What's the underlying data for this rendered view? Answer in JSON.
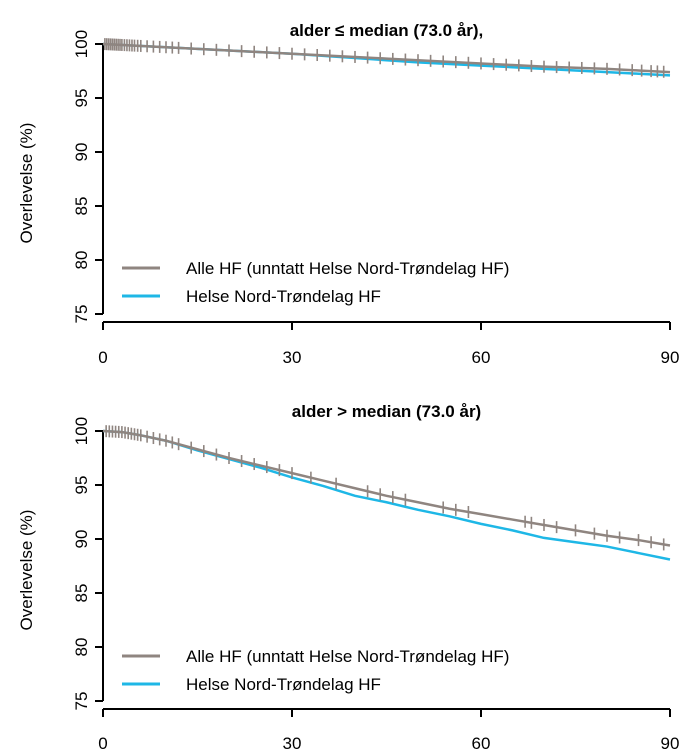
{
  "colors": {
    "series_alle": "#8f8580",
    "series_hnt": "#1eb7e6",
    "axis": "#000000"
  },
  "chart_data": [
    {
      "type": "line",
      "title": "alder ≤ median (73.0 år),",
      "xlabel": "",
      "ylabel": "Overlevelse (%)",
      "xlim": [
        0,
        90
      ],
      "ylim": [
        75,
        100
      ],
      "x_ticks": [
        0,
        30,
        60,
        90
      ],
      "y_ticks": [
        75,
        80,
        85,
        90,
        95,
        100
      ],
      "grid": false,
      "legend_position": "bottom-left",
      "series": [
        {
          "name": "Alle HF (unntatt Helse Nord-Trøndelag HF)",
          "color_key": "series_alle",
          "x": [
            0,
            5,
            10,
            15,
            20,
            25,
            30,
            35,
            40,
            45,
            50,
            55,
            60,
            65,
            70,
            75,
            80,
            85,
            90
          ],
          "y": [
            100,
            99.85,
            99.7,
            99.55,
            99.4,
            99.25,
            99.1,
            98.95,
            98.8,
            98.65,
            98.5,
            98.35,
            98.2,
            98.05,
            97.9,
            97.8,
            97.7,
            97.55,
            97.4
          ],
          "censor_x": [
            0.3,
            0.6,
            0.9,
            1.2,
            1.5,
            1.8,
            2.1,
            2.4,
            2.7,
            3.0,
            3.4,
            3.8,
            4.2,
            4.6,
            5.0,
            5.5,
            6,
            7,
            8,
            9,
            10,
            11,
            12,
            14,
            16,
            18,
            20,
            22,
            24,
            26,
            28,
            30,
            32,
            34,
            36,
            38,
            40,
            42,
            44,
            46,
            48,
            50,
            52,
            54,
            56,
            58,
            60,
            62,
            64,
            66,
            68,
            70,
            72,
            74,
            76,
            78,
            80,
            82,
            84,
            85.5,
            87,
            88,
            89
          ]
        },
        {
          "name": "Helse Nord-Trøndelag HF",
          "color_key": "series_hnt",
          "x": [
            0,
            5,
            10,
            15,
            20,
            25,
            30,
            35,
            40,
            45,
            50,
            55,
            60,
            65,
            70,
            75,
            80,
            85,
            90
          ],
          "y": [
            100,
            99.85,
            99.7,
            99.55,
            99.4,
            99.25,
            99.1,
            98.9,
            98.7,
            98.5,
            98.3,
            98.15,
            98.0,
            97.85,
            97.7,
            97.55,
            97.4,
            97.25,
            97.1
          ],
          "censor_x": []
        }
      ]
    },
    {
      "type": "line",
      "title": "alder > median (73.0 år)",
      "xlabel": "",
      "ylabel": "Overlevelse (%)",
      "xlim": [
        0,
        90
      ],
      "ylim": [
        75,
        100
      ],
      "x_ticks": [
        0,
        30,
        60,
        90
      ],
      "y_ticks": [
        75,
        80,
        85,
        90,
        95,
        100
      ],
      "grid": false,
      "legend_position": "bottom-left",
      "series": [
        {
          "name": "Alle HF (unntatt Helse Nord-Trøndelag HF)",
          "color_key": "series_alle",
          "x": [
            0,
            3,
            6,
            10,
            15,
            20,
            25,
            30,
            35,
            40,
            45,
            50,
            55,
            60,
            65,
            70,
            75,
            80,
            85,
            90
          ],
          "y": [
            100,
            99.9,
            99.6,
            99.1,
            98.3,
            97.5,
            96.8,
            96.1,
            95.4,
            94.7,
            94.0,
            93.4,
            92.8,
            92.3,
            91.8,
            91.3,
            90.8,
            90.3,
            89.9,
            89.4
          ],
          "censor_x": [
            0.5,
            1,
            1.5,
            2,
            2.5,
            3,
            3.5,
            4,
            4.5,
            5,
            5.5,
            6,
            7,
            8,
            9,
            10,
            11,
            12,
            14,
            16,
            18,
            20,
            22,
            24,
            26,
            28,
            30,
            33,
            37,
            42,
            44,
            46,
            48,
            54,
            56,
            58,
            67,
            68,
            70,
            72,
            75,
            78,
            80,
            82,
            85,
            87,
            89
          ]
        },
        {
          "name": "Helse Nord-Trøndelag HF",
          "color_key": "series_hnt",
          "x": [
            0,
            3,
            6,
            10,
            15,
            20,
            25,
            30,
            35,
            40,
            45,
            50,
            55,
            60,
            65,
            70,
            75,
            80,
            85,
            90
          ],
          "y": [
            100,
            99.9,
            99.6,
            99.1,
            98.2,
            97.4,
            96.6,
            95.7,
            94.9,
            94.0,
            93.4,
            92.7,
            92.1,
            91.4,
            90.8,
            90.1,
            89.7,
            89.3,
            88.7,
            88.1
          ],
          "censor_x": []
        }
      ]
    }
  ]
}
